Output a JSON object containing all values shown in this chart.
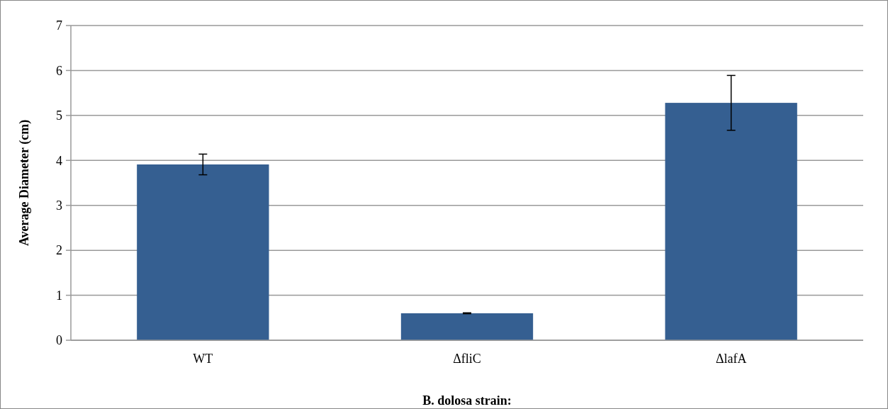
{
  "chart_data": {
    "type": "bar",
    "xlabel": "B. dolosa strain:",
    "ylabel": "Average Diameter (cm)",
    "categories": [
      "WT",
      "ΔfliC",
      "ΔlafA"
    ],
    "values": [
      3.91,
      0.6,
      5.28
    ],
    "errors": [
      0.23,
      0.01,
      0.61
    ],
    "color": "#355f91",
    "ylim": [
      0,
      7
    ],
    "yticks": [
      0,
      1,
      2,
      3,
      4,
      5,
      6,
      7
    ],
    "grid": "y"
  }
}
